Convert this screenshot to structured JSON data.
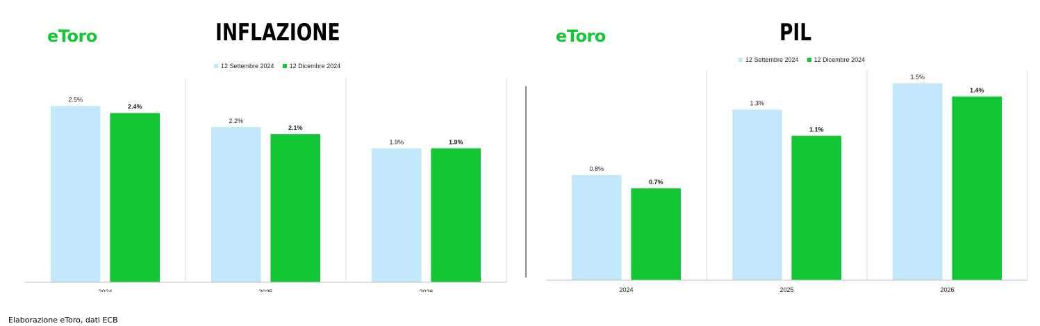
{
  "branding": {
    "logo_text": "eToro"
  },
  "colors": {
    "series_light": "#c2e7fa",
    "series_green": "#13c636",
    "gridline": "#d9d9d9",
    "axis": "#bfbfbf",
    "divider": "#8a8a8a"
  },
  "footer": {
    "source": "Elaborazione eToro, dati ECB"
  },
  "chart_data": [
    {
      "type": "bar",
      "title": "INFLAZIONE",
      "categories": [
        "2024",
        "2025",
        "2026"
      ],
      "series": [
        {
          "name": "12 Settembre 2024",
          "values": [
            2.5,
            2.2,
            1.9
          ],
          "labels": [
            "2.5%",
            "2.2%",
            "1.9%"
          ]
        },
        {
          "name": "12 Dicembre 2024",
          "values": [
            2.4,
            2.1,
            1.9
          ],
          "labels": [
            "2.4%",
            "2.1%",
            "1.9%"
          ]
        }
      ],
      "ylim": [
        0,
        2.9
      ],
      "xlabel": "",
      "ylabel": "",
      "legend": "top-center",
      "grid": "vertical separators between categories"
    },
    {
      "type": "bar",
      "title": "PIL",
      "categories": [
        "2024",
        "2025",
        "2026"
      ],
      "series": [
        {
          "name": "12 Settembre 2024",
          "values": [
            0.8,
            1.3,
            1.5
          ],
          "labels": [
            "0.8%",
            "1.3%",
            "1.5%"
          ]
        },
        {
          "name": "12 Dicembre 2024",
          "values": [
            0.7,
            1.1,
            1.4
          ],
          "labels": [
            "0.7%",
            "1.1%",
            "1.4%"
          ]
        }
      ],
      "ylim": [
        0,
        1.6
      ],
      "xlabel": "",
      "ylabel": "",
      "legend": "top-center",
      "grid": "vertical separators between categories"
    }
  ]
}
